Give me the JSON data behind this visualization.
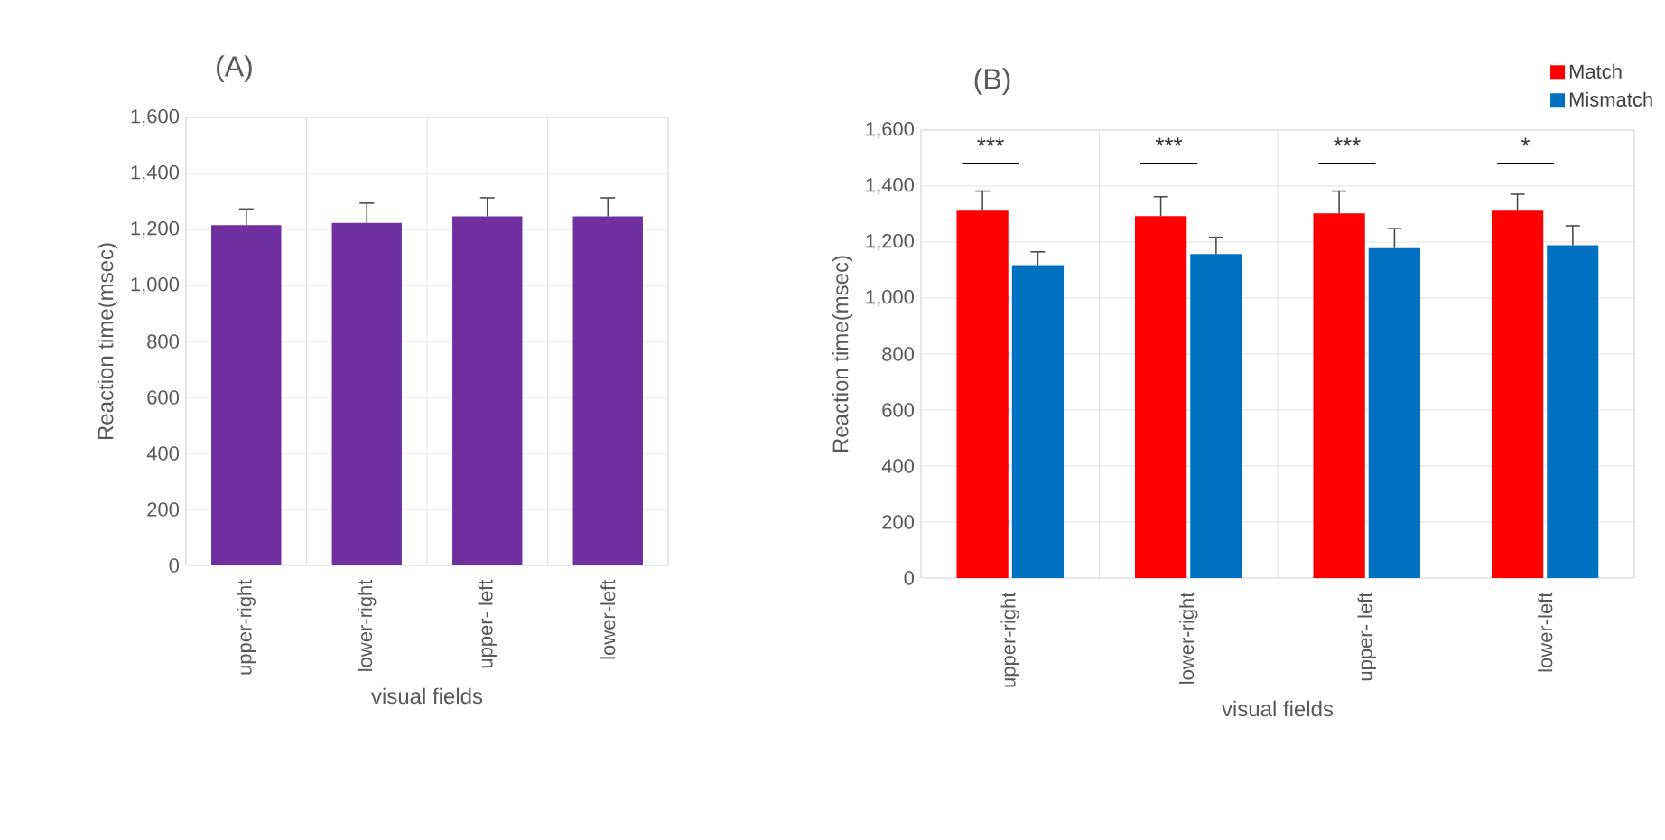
{
  "chart_data": [
    {
      "type": "bar",
      "title": "(A)",
      "xlabel": "visual fields",
      "ylabel": "Reaction time(msec)",
      "categories": [
        "upper-right",
        "lower-right",
        "upper- left",
        "lower-left"
      ],
      "values": [
        1215,
        1223,
        1247,
        1247
      ],
      "errors": [
        58,
        71,
        66,
        66
      ],
      "color": "#7030a0",
      "ylim": [
        0,
        1600
      ],
      "yticks": [
        {
          "value": 0,
          "label": "0"
        },
        {
          "value": 200,
          "label": "200"
        },
        {
          "value": 400,
          "label": "400"
        },
        {
          "value": 600,
          "label": "600"
        },
        {
          "value": 800,
          "label": "800"
        },
        {
          "value": 1000,
          "label": "1,000"
        },
        {
          "value": 1200,
          "label": "1,200"
        },
        {
          "value": 1400,
          "label": "1,400"
        },
        {
          "value": 1600,
          "label": "1,600"
        }
      ],
      "grid": true,
      "legend": false
    },
    {
      "type": "bar",
      "title": "(B)",
      "xlabel": "visual fields",
      "ylabel": "Reaction time(msec)",
      "categories": [
        "upper-right",
        "lower-right",
        "upper- left",
        "lower-left"
      ],
      "series": [
        {
          "name": "Match",
          "color": "#ff0000",
          "values": [
            1312,
            1293,
            1302,
            1312
          ],
          "errors": [
            70,
            69,
            80,
            59
          ]
        },
        {
          "name": "Mismatch",
          "color": "#0070c0",
          "values": [
            1118,
            1157,
            1178,
            1189
          ],
          "errors": [
            47,
            60,
            70,
            69
          ]
        }
      ],
      "annotations": [
        "***",
        "***",
        "***",
        "*"
      ],
      "ylim": [
        0,
        1600
      ],
      "yticks": [
        {
          "value": 0,
          "label": "0"
        },
        {
          "value": 200,
          "label": "200"
        },
        {
          "value": 400,
          "label": "400"
        },
        {
          "value": 600,
          "label": "600"
        },
        {
          "value": 800,
          "label": "800"
        },
        {
          "value": 1000,
          "label": "1,000"
        },
        {
          "value": 1200,
          "label": "1,200"
        },
        {
          "value": 1400,
          "label": "1,400"
        },
        {
          "value": 1600,
          "label": "1,600"
        }
      ],
      "grid": true,
      "legend": "top right"
    }
  ]
}
